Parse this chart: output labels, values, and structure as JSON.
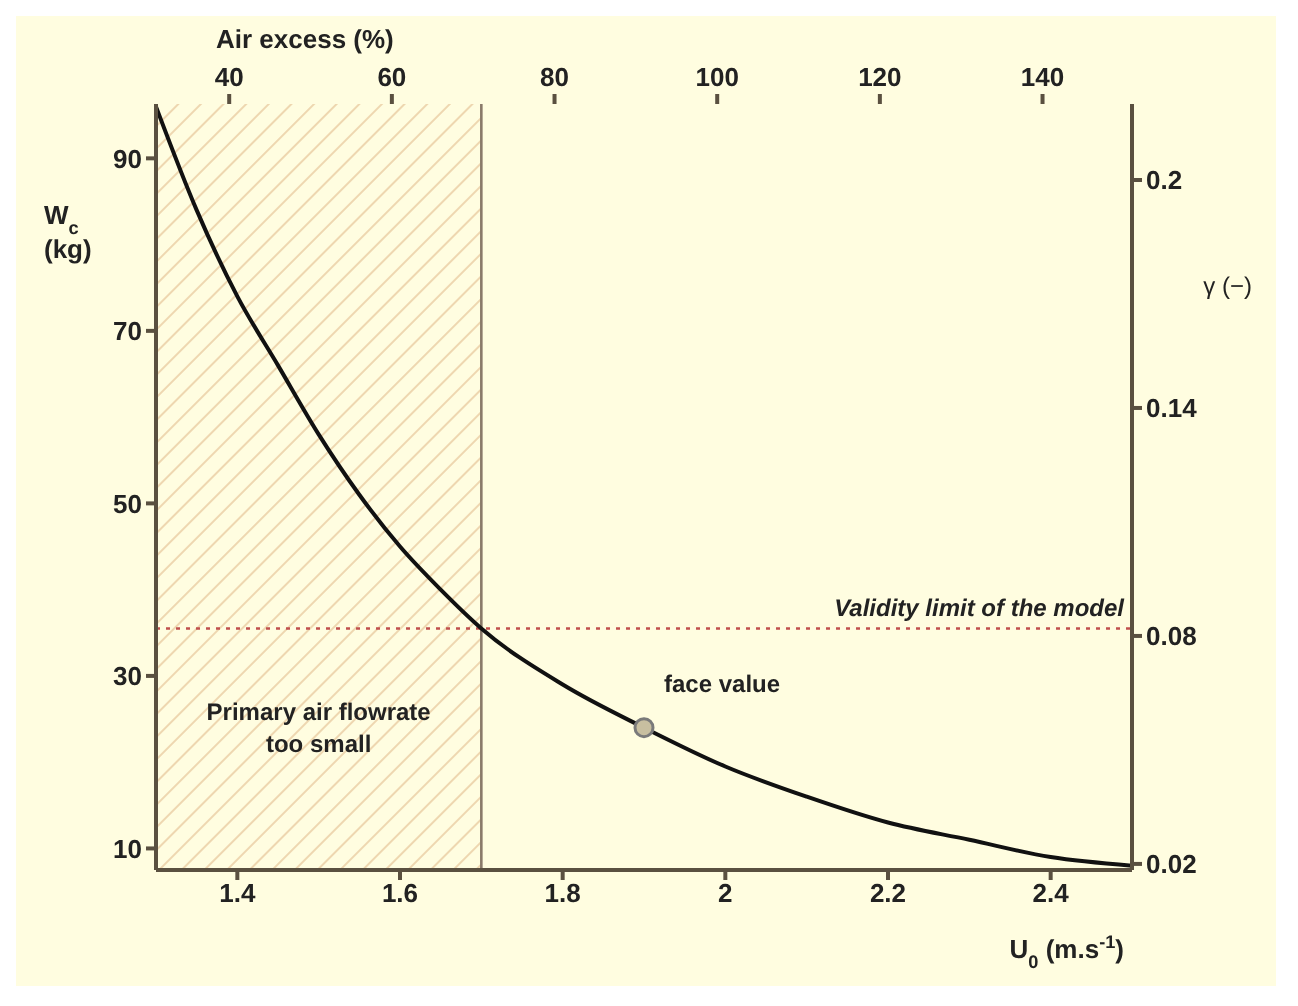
{
  "chart_data": {
    "type": "line",
    "xlabel": "U$_{0}$ (m.s$^{-1}$)",
    "ylabel": "W$_{c}$ (kg)",
    "y2label": "γ (−)",
    "x2label": "Air excess (%)",
    "xlim": [
      1.3,
      2.5
    ],
    "xticks": [
      1.4,
      1.6,
      1.8,
      2,
      2.2,
      2.4
    ],
    "ylim": [
      7.5,
      96.3
    ],
    "yticks": [
      10,
      30,
      50,
      70,
      90
    ],
    "y2lim": [
      0.0184,
      0.22
    ],
    "y2ticks": [
      0.02,
      0.08,
      0.14,
      0.2
    ],
    "x2lim": [
      31,
      151
    ],
    "x2ticks": [
      40,
      60,
      80,
      100,
      120,
      140
    ],
    "series": [
      {
        "color": "#111111",
        "marker": "none",
        "x": [
          1.3,
          1.35,
          1.4,
          1.45,
          1.5,
          1.55,
          1.6,
          1.65,
          1.7,
          1.8,
          1.9,
          2,
          2.1,
          2.2,
          2.3,
          2.4,
          2.5
        ],
        "values": [
          96,
          84,
          74,
          66,
          58,
          51,
          45,
          40,
          35.5,
          29,
          24,
          19.5,
          16,
          13,
          11,
          9,
          8
        ]
      },
      {
        "type": "scatter",
        "color": "#7a7a7a",
        "marker": "circle",
        "x": [
          1.9
        ],
        "values": [
          24
        ]
      }
    ],
    "ref_lines": [
      {
        "axis": "x",
        "value": 1.7,
        "color": "#8a7a6a",
        "line_style": "solid"
      },
      {
        "axis": "y",
        "value": 35.5,
        "label": "Validity limit of the model",
        "color": "#c0504d",
        "line_style": "dotted"
      }
    ],
    "bands": [
      {
        "axis": "x",
        "from": 1.3,
        "to": 1.7,
        "label": "Primary air flowrate too small",
        "color": "#eed7b0"
      }
    ],
    "annotations": [
      {
        "text": "face value",
        "x": 1.9,
        "y": 24
      }
    ],
    "grid": false,
    "legend": false
  }
}
